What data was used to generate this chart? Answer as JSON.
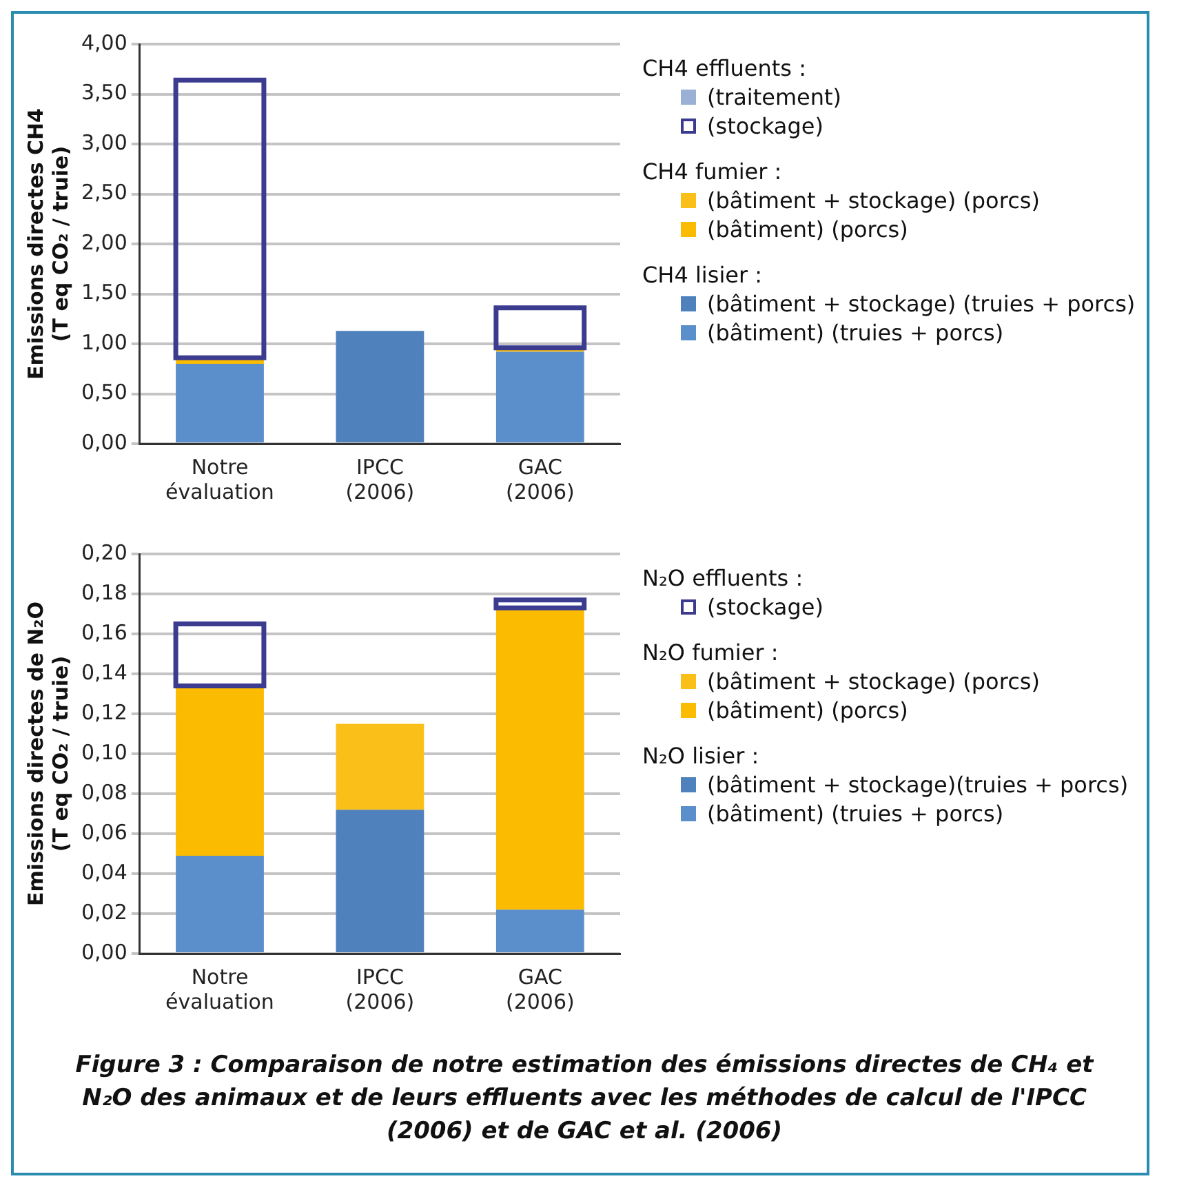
{
  "chart_data": [
    {
      "type": "bar",
      "stacked": true,
      "ylabel": "Emissions directes CH4\n(T eq CO₂ / truie)",
      "categories": [
        "Notre évaluation",
        "IPCC (2006)",
        "GAC (2006)"
      ],
      "ylim": [
        0,
        4
      ],
      "yticks": [
        {
          "value": 0,
          "label": "0,00"
        },
        {
          "value": 0.5,
          "label": "0,50"
        },
        {
          "value": 1,
          "label": "1,00"
        },
        {
          "value": 1.5,
          "label": "1,50"
        },
        {
          "value": 2,
          "label": "2,00"
        },
        {
          "value": 2.5,
          "label": "2,50"
        },
        {
          "value": 3,
          "label": "3,00"
        },
        {
          "value": 3.5,
          "label": "3,50"
        },
        {
          "value": 4,
          "label": "4,00"
        }
      ],
      "grid": "y",
      "legend": "right",
      "annotations": [
        "CH4 effluents :",
        "CH4 fumier :",
        "CH4 lisier :"
      ],
      "series": [
        {
          "name": "(bâtiment) (truies + porcs)",
          "color": "#5b8fcb",
          "values": [
            0.8,
            null,
            0.92
          ]
        },
        {
          "name": "(bâtiment + stockage) (truies + porcs)",
          "color": "#4f81bd",
          "values": [
            null,
            1.13,
            null
          ]
        },
        {
          "name": "(bâtiment) (porcs)",
          "color": "#fbbb00",
          "values": [
            0.06,
            null,
            0.04
          ]
        },
        {
          "name": "(bâtiment + stockage) (porcs)",
          "color": "#fbbf1a",
          "values": [
            null,
            null,
            null
          ]
        },
        {
          "name": "(stockage)",
          "color": "#3b3b8f",
          "values": [
            2.78,
            null,
            0.4
          ]
        },
        {
          "name": "(traitement)",
          "color": "#9ab0d4",
          "values": [
            null,
            null,
            null
          ]
        }
      ]
    },
    {
      "type": "bar",
      "stacked": true,
      "ylabel": "Emissions directes de N₂O\n(T eq CO₂ / truie)",
      "categories": [
        "Notre évaluation",
        "IPCC (2006)",
        "GAC (2006)"
      ],
      "ylim": [
        0,
        0.2
      ],
      "yticks": [
        {
          "value": 0,
          "label": "0,00"
        },
        {
          "value": 0.02,
          "label": "0,02"
        },
        {
          "value": 0.04,
          "label": "0,04"
        },
        {
          "value": 0.06,
          "label": "0,06"
        },
        {
          "value": 0.08,
          "label": "0,08"
        },
        {
          "value": 0.1,
          "label": "0,10"
        },
        {
          "value": 0.12,
          "label": "0,12"
        },
        {
          "value": 0.14,
          "label": "0,14"
        },
        {
          "value": 0.16,
          "label": "0,16"
        },
        {
          "value": 0.18,
          "label": "0,18"
        },
        {
          "value": 0.2,
          "label": "0,20"
        }
      ],
      "grid": "y",
      "legend": "right",
      "annotations": [
        "N₂O effluents :",
        "N₂O fumier :",
        "N₂O lisier :",
        "Figure 3 : Comparaison de notre estimation des émissions directes de CH₄ et N₂O des animaux et de leurs effluents avec les méthodes de calcul de l'IPCC (2006) et de GAC et al. (2006)"
      ],
      "series": [
        {
          "name": "(bâtiment) (truies + porcs)",
          "color": "#5b8fcb",
          "values": [
            0.049,
            null,
            0.022
          ]
        },
        {
          "name": "(bâtiment + stockage)(truies + porcs)",
          "color": "#4f81bd",
          "values": [
            null,
            0.072,
            null
          ]
        },
        {
          "name": "(bâtiment) (porcs)",
          "color": "#fbbb00",
          "values": [
            0.085,
            null,
            0.151
          ]
        },
        {
          "name": "(bâtiment + stockage) (porcs)",
          "color": "#fbbf1a",
          "values": [
            null,
            0.043,
            null
          ]
        },
        {
          "name": "(stockage)",
          "color": "#3b3b8f",
          "values": [
            0.031,
            null,
            0.004
          ]
        }
      ]
    }
  ]
}
